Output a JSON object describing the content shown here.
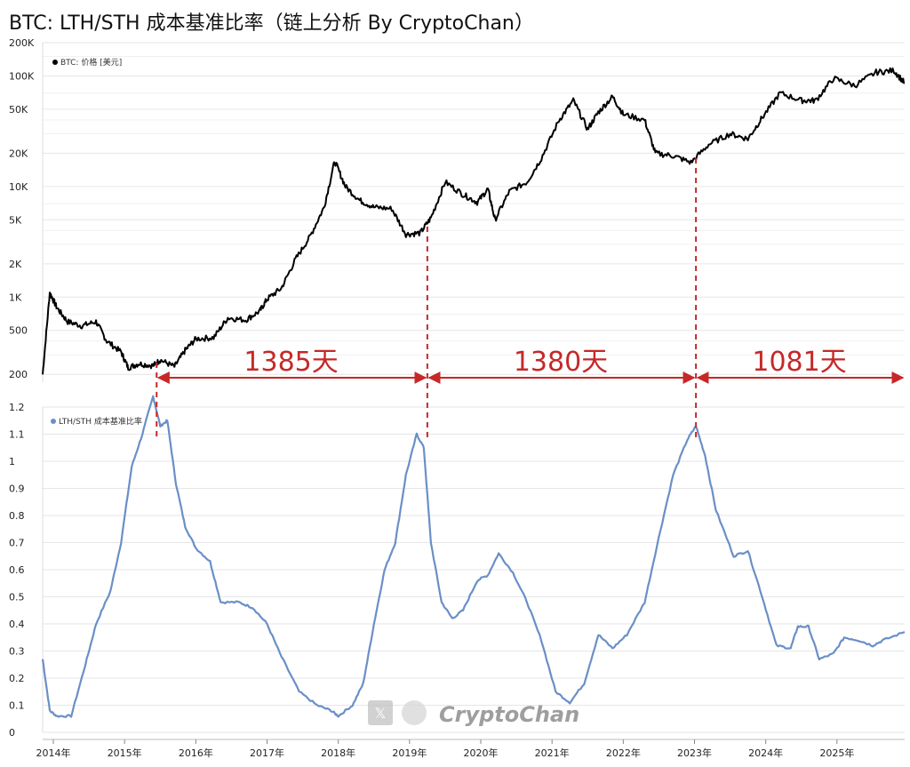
{
  "title": "BTC: LTH/STH 成本基准比率（链上分析 By CryptoChan）",
  "watermark": "CryptoChan",
  "watermark_icon": "x-logo-icon",
  "colors": {
    "price_line": "#000000",
    "ratio_line": "#6a8fc7",
    "interval_marker": "#c62828",
    "grid": "#e6e6e6"
  },
  "chart_data": [
    {
      "type": "line",
      "scale": "log",
      "legend": {
        "label": "BTC: 价格 [美元]",
        "placement": "top-left"
      },
      "y_ticks": [
        {
          "value": 200,
          "label": "200"
        },
        {
          "value": 500,
          "label": "500"
        },
        {
          "value": 1000,
          "label": "1K"
        },
        {
          "value": 2000,
          "label": "2K"
        },
        {
          "value": 5000,
          "label": "5K"
        },
        {
          "value": 10000,
          "label": "10K"
        },
        {
          "value": 20000,
          "label": "20K"
        },
        {
          "value": 50000,
          "label": "50K"
        },
        {
          "value": 100000,
          "label": "100K"
        },
        {
          "value": 200000,
          "label": "200K"
        }
      ],
      "grid": true,
      "series": [
        {
          "name": "BTC: 价格 [美元]",
          "points": [
            [
              2013.85,
              200
            ],
            [
              2013.95,
              1100
            ],
            [
              2014.05,
              800
            ],
            [
              2014.2,
              600
            ],
            [
              2014.4,
              550
            ],
            [
              2014.6,
              600
            ],
            [
              2014.75,
              400
            ],
            [
              2014.95,
              320
            ],
            [
              2015.05,
              230
            ],
            [
              2015.2,
              250
            ],
            [
              2015.4,
              240
            ],
            [
              2015.5,
              270
            ],
            [
              2015.7,
              235
            ],
            [
              2015.85,
              330
            ],
            [
              2016.0,
              420
            ],
            [
              2016.25,
              430
            ],
            [
              2016.45,
              650
            ],
            [
              2016.7,
              620
            ],
            [
              2016.9,
              750
            ],
            [
              2017.0,
              960
            ],
            [
              2017.2,
              1200
            ],
            [
              2017.4,
              2200
            ],
            [
              2017.6,
              3500
            ],
            [
              2017.8,
              6500
            ],
            [
              2017.95,
              17000
            ],
            [
              2018.1,
              10000
            ],
            [
              2018.3,
              7500
            ],
            [
              2018.5,
              6500
            ],
            [
              2018.75,
              6300
            ],
            [
              2018.95,
              3700
            ],
            [
              2019.15,
              3800
            ],
            [
              2019.3,
              5200
            ],
            [
              2019.5,
              11000
            ],
            [
              2019.75,
              8500
            ],
            [
              2019.95,
              7200
            ],
            [
              2020.1,
              9500
            ],
            [
              2020.2,
              5000
            ],
            [
              2020.4,
              9000
            ],
            [
              2020.65,
              11000
            ],
            [
              2020.85,
              18000
            ],
            [
              2021.1,
              40000
            ],
            [
              2021.3,
              60000
            ],
            [
              2021.5,
              33000
            ],
            [
              2021.65,
              47000
            ],
            [
              2021.85,
              65000
            ],
            [
              2022.0,
              45000
            ],
            [
              2022.3,
              40000
            ],
            [
              2022.45,
              20000
            ],
            [
              2022.7,
              19000
            ],
            [
              2022.95,
              16500
            ],
            [
              2023.2,
              24000
            ],
            [
              2023.5,
              30000
            ],
            [
              2023.75,
              27000
            ],
            [
              2023.95,
              42000
            ],
            [
              2024.2,
              70000
            ],
            [
              2024.5,
              60000
            ],
            [
              2024.7,
              60000
            ],
            [
              2024.95,
              95000
            ],
            [
              2025.25,
              82000
            ],
            [
              2025.55,
              108000
            ],
            [
              2025.8,
              112000
            ],
            [
              2025.95,
              86000
            ]
          ]
        }
      ]
    },
    {
      "type": "line",
      "ylim": [
        0,
        1.2
      ],
      "legend": {
        "label": "LTH/STH 成本基准比率",
        "placement": "top-left"
      },
      "y_ticks": [
        {
          "value": 0,
          "label": "0"
        },
        {
          "value": 0.1,
          "label": "0.1"
        },
        {
          "value": 0.2,
          "label": "0.2"
        },
        {
          "value": 0.3,
          "label": "0.3"
        },
        {
          "value": 0.4,
          "label": "0.4"
        },
        {
          "value": 0.5,
          "label": "0.5"
        },
        {
          "value": 0.6,
          "label": "0.6"
        },
        {
          "value": 0.7,
          "label": "0.7"
        },
        {
          "value": 0.8,
          "label": "0.8"
        },
        {
          "value": 0.9,
          "label": "0.9"
        },
        {
          "value": 1,
          "label": "1"
        },
        {
          "value": 1.1,
          "label": "1.1"
        },
        {
          "value": 1.2,
          "label": "1.2"
        }
      ],
      "x_ticks": [
        {
          "value": 2014.0,
          "label": "2014年"
        },
        {
          "value": 2015.0,
          "label": "2015年"
        },
        {
          "value": 2016.0,
          "label": "2016年"
        },
        {
          "value": 2017.0,
          "label": "2017年"
        },
        {
          "value": 2018.0,
          "label": "2018年"
        },
        {
          "value": 2019.0,
          "label": "2019年"
        },
        {
          "value": 2020.0,
          "label": "2020年"
        },
        {
          "value": 2021.0,
          "label": "2021年"
        },
        {
          "value": 2022.0,
          "label": "2022年"
        },
        {
          "value": 2023.0,
          "label": "2023年"
        },
        {
          "value": 2024.0,
          "label": "2024年"
        },
        {
          "value": 2025.0,
          "label": "2025年"
        }
      ],
      "series": [
        {
          "name": "LTH/STH 成本基准比率",
          "points": [
            [
              2013.85,
              0.27
            ],
            [
              2013.95,
              0.08
            ],
            [
              2014.05,
              0.06
            ],
            [
              2014.25,
              0.06
            ],
            [
              2014.45,
              0.25
            ],
            [
              2014.6,
              0.4
            ],
            [
              2014.8,
              0.52
            ],
            [
              2014.95,
              0.7
            ],
            [
              2015.1,
              0.98
            ],
            [
              2015.25,
              1.1
            ],
            [
              2015.4,
              1.24
            ],
            [
              2015.5,
              1.13
            ],
            [
              2015.6,
              1.15
            ],
            [
              2015.72,
              0.92
            ],
            [
              2015.85,
              0.76
            ],
            [
              2016.0,
              0.68
            ],
            [
              2016.2,
              0.63
            ],
            [
              2016.35,
              0.48
            ],
            [
              2016.6,
              0.48
            ],
            [
              2016.8,
              0.46
            ],
            [
              2017.0,
              0.4
            ],
            [
              2017.2,
              0.28
            ],
            [
              2017.45,
              0.15
            ],
            [
              2017.7,
              0.1
            ],
            [
              2017.9,
              0.08
            ],
            [
              2018.0,
              0.06
            ],
            [
              2018.2,
              0.1
            ],
            [
              2018.35,
              0.18
            ],
            [
              2018.5,
              0.4
            ],
            [
              2018.65,
              0.6
            ],
            [
              2018.8,
              0.7
            ],
            [
              2018.95,
              0.95
            ],
            [
              2019.1,
              1.1
            ],
            [
              2019.2,
              1.05
            ],
            [
              2019.3,
              0.7
            ],
            [
              2019.45,
              0.48
            ],
            [
              2019.6,
              0.42
            ],
            [
              2019.75,
              0.45
            ],
            [
              2019.95,
              0.56
            ],
            [
              2020.1,
              0.58
            ],
            [
              2020.25,
              0.66
            ],
            [
              2020.45,
              0.59
            ],
            [
              2020.65,
              0.48
            ],
            [
              2020.85,
              0.34
            ],
            [
              2021.05,
              0.15
            ],
            [
              2021.25,
              0.11
            ],
            [
              2021.45,
              0.18
            ],
            [
              2021.65,
              0.36
            ],
            [
              2021.85,
              0.31
            ],
            [
              2022.05,
              0.36
            ],
            [
              2022.3,
              0.48
            ],
            [
              2022.5,
              0.72
            ],
            [
              2022.7,
              0.95
            ],
            [
              2022.9,
              1.08
            ],
            [
              2023.02,
              1.13
            ],
            [
              2023.15,
              1.02
            ],
            [
              2023.3,
              0.82
            ],
            [
              2023.55,
              0.65
            ],
            [
              2023.75,
              0.67
            ],
            [
              2023.95,
              0.5
            ],
            [
              2024.15,
              0.32
            ],
            [
              2024.35,
              0.31
            ],
            [
              2024.45,
              0.39
            ],
            [
              2024.6,
              0.39
            ],
            [
              2024.75,
              0.27
            ],
            [
              2024.95,
              0.29
            ],
            [
              2025.1,
              0.35
            ],
            [
              2025.3,
              0.34
            ],
            [
              2025.5,
              0.32
            ],
            [
              2025.65,
              0.34
            ],
            [
              2025.95,
              0.37
            ]
          ]
        }
      ]
    }
  ],
  "intervals": [
    {
      "from": 2015.45,
      "to": 2019.25,
      "label": "1385天"
    },
    {
      "from": 2019.25,
      "to": 2023.02,
      "label": "1380天"
    },
    {
      "from": 2023.02,
      "to": 2025.95,
      "label": "1081天"
    }
  ]
}
